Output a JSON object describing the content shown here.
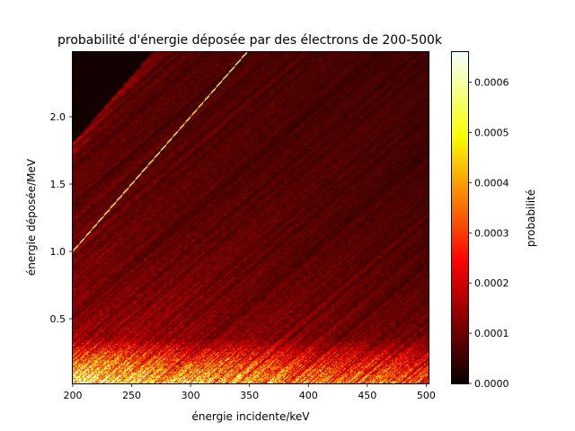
{
  "chart_data": {
    "type": "heatmap",
    "title": "probabilité d'énergie déposée par des électrons de 200-500k",
    "xlabel": "énergie incidente/keV",
    "ylabel": "énergie déposée/MeV",
    "xlim": [
      200,
      502
    ],
    "ylim": [
      0.02,
      2.48
    ],
    "x_ticks": [
      200,
      250,
      300,
      350,
      400,
      450,
      500
    ],
    "x_tick_labels": [
      "200",
      "250",
      "300",
      "350",
      "400",
      "450",
      "500"
    ],
    "y_ticks": [
      0.5,
      1.0,
      1.5,
      2.0
    ],
    "y_tick_labels": [
      "0.5",
      "1.0",
      "1.5",
      "2.0"
    ],
    "colormap": "hot",
    "colorbar": {
      "label": "probabilité",
      "range": [
        0.0,
        0.00066
      ],
      "ticks": [
        0.0,
        0.0001,
        0.0002,
        0.0003,
        0.0004,
        0.0005,
        0.0006
      ],
      "tick_labels": [
        "0.0000",
        "0.0001",
        "0.0002",
        "0.0003",
        "0.0004",
        "0.0005",
        "0.0006"
      ]
    },
    "features": {
      "bright_line": {
        "x": [
          200,
          350
        ],
        "y": [
          1.0,
          2.5
        ],
        "value": 0.00062
      },
      "empty_region_boundary": {
        "x": [
          200,
          270
        ],
        "y": [
          1.78,
          2.48
        ]
      },
      "low_energy_band_value": 0.00035,
      "background_value": 0.00012
    },
    "grid": false
  }
}
